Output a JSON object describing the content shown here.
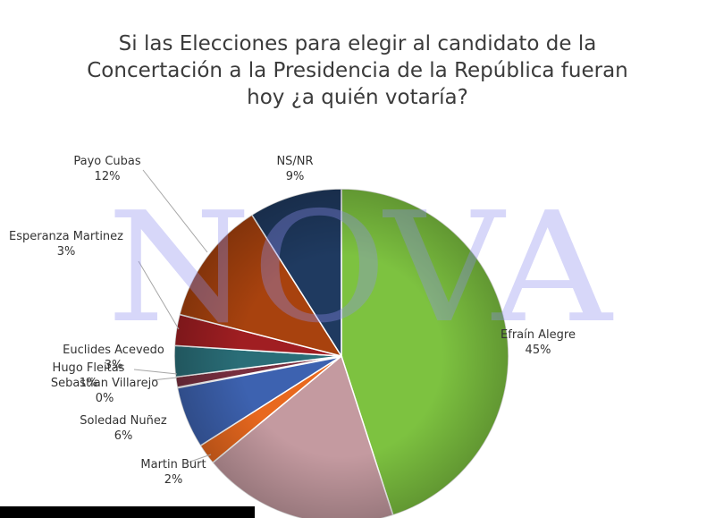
{
  "title_lines": [
    "Si las Elecciones para elegir al candidato de la",
    "Concertación a la Presidencia de la República fueran",
    "hoy ¿a quién votaría?"
  ],
  "watermark": "NOVA",
  "chart_data": {
    "type": "pie",
    "title": "Si las Elecciones para elegir al candidato de la Concertación a la Presidencia de la República fueran hoy ¿a quién votaría?",
    "unit": "%",
    "slices": [
      {
        "name": "Efraín Alegre",
        "value": 45,
        "label": "45%",
        "color": "#7dc240"
      },
      {
        "name": "",
        "value": 19,
        "label": "",
        "color": "#c49aa0"
      },
      {
        "name": "Martin Burt",
        "value": 2,
        "label": "2%",
        "color": "#e8681e"
      },
      {
        "name": "Soledad Nuñez",
        "value": 6,
        "label": "6%",
        "color": "#3d62b0"
      },
      {
        "name": "Sebastian Villarejo",
        "value": 0,
        "label": "0%",
        "color": "#c8c8c8"
      },
      {
        "name": "Hugo Fleitas",
        "value": 1,
        "label": "1%",
        "color": "#7a3040"
      },
      {
        "name": "Euclides Acevedo",
        "value": 3,
        "label": "3%",
        "color": "#2a6e78"
      },
      {
        "name": "Esperanza Martinez",
        "value": 3,
        "label": "3%",
        "color": "#a01e22"
      },
      {
        "name": "Payo Cubas",
        "value": 12,
        "label": "12%",
        "color": "#a8420e"
      },
      {
        "name": "NS/NR",
        "value": 9,
        "label": "9%",
        "color": "#1f3a60"
      }
    ]
  }
}
